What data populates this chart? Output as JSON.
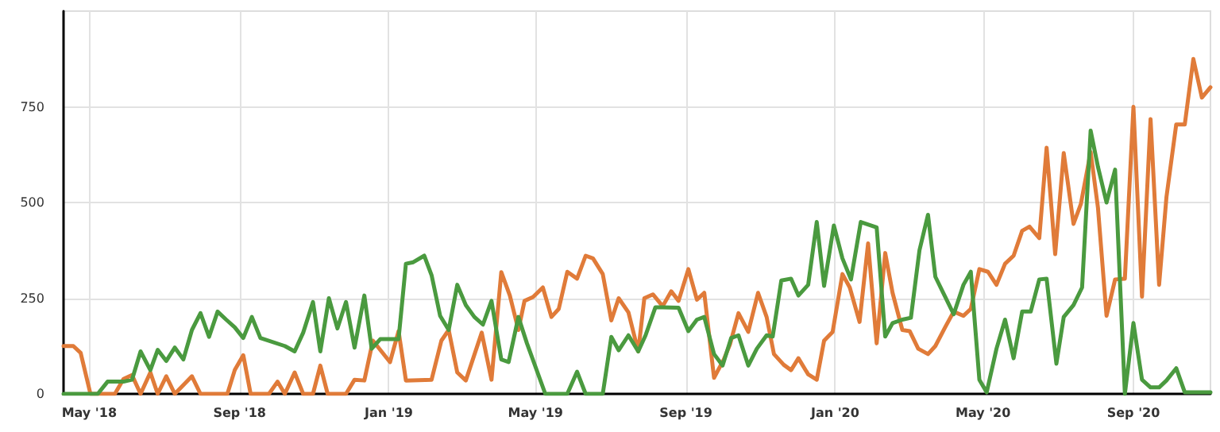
{
  "chart_data": {
    "type": "line",
    "xlim": [
      "2018-04-10",
      "2020-11-03"
    ],
    "ylim": [
      0,
      1000
    ],
    "xticks": [
      {
        "value": "2018-05-01",
        "label": "May '18"
      },
      {
        "value": "2018-09-01",
        "label": "Sep '18"
      },
      {
        "value": "2019-01-01",
        "label": "Jan '19"
      },
      {
        "value": "2019-05-01",
        "label": "May '19"
      },
      {
        "value": "2019-09-01",
        "label": "Sep '19"
      },
      {
        "value": "2020-01-01",
        "label": "Jan '20"
      },
      {
        "value": "2020-05-01",
        "label": "May '20"
      },
      {
        "value": "2020-09-01",
        "label": "Sep '20"
      }
    ],
    "yticks": [
      0,
      250,
      500,
      750
    ],
    "grid": true,
    "marker": "none",
    "line_style": "solid",
    "series": [
      {
        "color": "#e07b39",
        "x": [
          "2018-04-10",
          "2018-04-18",
          "2018-04-24",
          "2018-05-02",
          "2018-05-22",
          "2018-05-29",
          "2018-06-05",
          "2018-06-12",
          "2018-06-20",
          "2018-06-26",
          "2018-07-03",
          "2018-07-10",
          "2018-07-24",
          "2018-07-31",
          "2018-08-22",
          "2018-08-28",
          "2018-09-04",
          "2018-09-10",
          "2018-09-25",
          "2018-10-02",
          "2018-10-08",
          "2018-10-16",
          "2018-10-23",
          "2018-10-31",
          "2018-11-06",
          "2018-11-12",
          "2018-11-27",
          "2018-12-04",
          "2018-12-12",
          "2018-12-19",
          "2018-12-26",
          "2019-01-02",
          "2019-01-09",
          "2019-01-15",
          "2019-02-05",
          "2019-02-13",
          "2019-02-19",
          "2019-02-26",
          "2019-03-05",
          "2019-03-18",
          "2019-03-26",
          "2019-04-03",
          "2019-04-10",
          "2019-04-17",
          "2019-04-22",
          "2019-04-29",
          "2019-05-07",
          "2019-05-14",
          "2019-05-20",
          "2019-05-27",
          "2019-06-04",
          "2019-06-11",
          "2019-06-17",
          "2019-06-25",
          "2019-07-02",
          "2019-07-08",
          "2019-07-16",
          "2019-07-24",
          "2019-07-29",
          "2019-08-05",
          "2019-08-13",
          "2019-08-20",
          "2019-08-26",
          "2019-09-03",
          "2019-09-10",
          "2019-09-16",
          "2019-09-24",
          "2019-10-02",
          "2019-10-07",
          "2019-10-14",
          "2019-10-22",
          "2019-10-30",
          "2019-11-06",
          "2019-11-12",
          "2019-11-20",
          "2019-11-26",
          "2019-12-02",
          "2019-12-10",
          "2019-12-17",
          "2019-12-23",
          "2019-12-30",
          "2020-01-07",
          "2020-01-13",
          "2020-01-21",
          "2020-01-28",
          "2020-02-04",
          "2020-02-11",
          "2020-02-17",
          "2020-02-25",
          "2020-03-02",
          "2020-03-09",
          "2020-03-17",
          "2020-03-23",
          "2020-03-31",
          "2020-04-07",
          "2020-04-15",
          "2020-04-21",
          "2020-04-28",
          "2020-05-05",
          "2020-05-12",
          "2020-05-19",
          "2020-05-26",
          "2020-06-02",
          "2020-06-08",
          "2020-06-16",
          "2020-06-22",
          "2020-06-29",
          "2020-07-06",
          "2020-07-14",
          "2020-07-20",
          "2020-07-28",
          "2020-08-03",
          "2020-08-10",
          "2020-08-17",
          "2020-08-25",
          "2020-09-01",
          "2020-09-08",
          "2020-09-15",
          "2020-09-22",
          "2020-09-28",
          "2020-10-06",
          "2020-10-13",
          "2020-10-20",
          "2020-10-27",
          "2020-11-03"
        ],
        "values": [
          125,
          125,
          107,
          0,
          0,
          39,
          49,
          0,
          56,
          0,
          46,
          0,
          46,
          0,
          0,
          62,
          101,
          0,
          0,
          32,
          0,
          56,
          0,
          0,
          74,
          0,
          0,
          37,
          35,
          139,
          111,
          83,
          164,
          35,
          37,
          139,
          167,
          56,
          35,
          160,
          37,
          318,
          257,
          167,
          243,
          253,
          278,
          201,
          222,
          319,
          301,
          361,
          354,
          313,
          192,
          250,
          213,
          111,
          250,
          260,
          229,
          268,
          243,
          326,
          246,
          264,
          42,
          90,
          129,
          211,
          162,
          264,
          201,
          104,
          76,
          62,
          93,
          51,
          37,
          139,
          162,
          313,
          278,
          188,
          393,
          132,
          368,
          264,
          167,
          164,
          118,
          104,
          125,
          174,
          215,
          204,
          222,
          326,
          319,
          285,
          340,
          361,
          426,
          437,
          407,
          643,
          365,
          629,
          444,
          496,
          632,
          486,
          204,
          299,
          301,
          750,
          254,
          718,
          285,
          514,
          704,
          704,
          875,
          774,
          801
        ]
      },
      {
        "color": "#4a9a3f",
        "x": [
          "2018-04-10",
          "2018-05-08",
          "2018-05-16",
          "2018-05-29",
          "2018-06-05",
          "2018-06-12",
          "2018-06-20",
          "2018-06-26",
          "2018-07-03",
          "2018-07-10",
          "2018-07-17",
          "2018-07-24",
          "2018-07-31",
          "2018-08-07",
          "2018-08-14",
          "2018-08-21",
          "2018-08-28",
          "2018-09-04",
          "2018-09-11",
          "2018-09-18",
          "2018-10-08",
          "2018-10-16",
          "2018-10-23",
          "2018-10-31",
          "2018-11-06",
          "2018-11-13",
          "2018-11-20",
          "2018-11-27",
          "2018-12-04",
          "2018-12-12",
          "2018-12-18",
          "2018-12-25",
          "2019-01-09",
          "2019-01-15",
          "2019-01-21",
          "2019-01-30",
          "2019-02-05",
          "2019-02-12",
          "2019-02-19",
          "2019-02-26",
          "2019-03-05",
          "2019-03-12",
          "2019-03-19",
          "2019-03-26",
          "2019-04-03",
          "2019-04-09",
          "2019-04-17",
          "2019-04-24",
          "2019-05-09",
          "2019-05-27",
          "2019-06-04",
          "2019-06-11",
          "2019-06-25",
          "2019-07-02",
          "2019-07-08",
          "2019-07-16",
          "2019-07-24",
          "2019-07-30",
          "2019-08-07",
          "2019-08-13",
          "2019-08-26",
          "2019-09-03",
          "2019-09-10",
          "2019-09-16",
          "2019-09-24",
          "2019-10-01",
          "2019-10-08",
          "2019-10-14",
          "2019-10-22",
          "2019-10-29",
          "2019-11-06",
          "2019-11-11",
          "2019-11-18",
          "2019-11-26",
          "2019-12-02",
          "2019-12-10",
          "2019-12-17",
          "2019-12-23",
          "2019-12-31",
          "2020-01-07",
          "2020-01-14",
          "2020-01-22",
          "2020-02-04",
          "2020-02-11",
          "2020-02-17",
          "2020-02-25",
          "2020-03-03",
          "2020-03-10",
          "2020-03-17",
          "2020-03-23",
          "2020-03-31",
          "2020-04-07",
          "2020-04-15",
          "2020-04-21",
          "2020-04-28",
          "2020-05-04",
          "2020-05-12",
          "2020-05-19",
          "2020-05-26",
          "2020-06-02",
          "2020-06-09",
          "2020-06-16",
          "2020-06-22",
          "2020-06-30",
          "2020-07-06",
          "2020-07-14",
          "2020-07-21",
          "2020-07-28",
          "2020-08-03",
          "2020-08-10",
          "2020-08-17",
          "2020-08-25",
          "2020-09-01",
          "2020-09-08",
          "2020-09-15",
          "2020-09-22",
          "2020-09-28",
          "2020-10-06",
          "2020-10-13",
          "2020-11-03"
        ],
        "values": [
          0,
          0,
          32,
          32,
          37,
          111,
          62,
          115,
          86,
          121,
          90,
          167,
          211,
          149,
          215,
          194,
          174,
          146,
          201,
          146,
          125,
          111,
          160,
          240,
          111,
          250,
          171,
          240,
          121,
          257,
          118,
          143,
          143,
          340,
          344,
          361,
          310,
          204,
          167,
          285,
          232,
          201,
          181,
          243,
          90,
          83,
          201,
          132,
          0,
          0,
          58,
          0,
          0,
          149,
          114,
          153,
          111,
          153,
          226,
          226,
          225,
          164,
          194,
          201,
          104,
          74,
          146,
          153,
          74,
          118,
          153,
          150,
          296,
          301,
          257,
          285,
          449,
          282,
          440,
          354,
          299,
          449,
          435,
          150,
          185,
          194,
          199,
          375,
          468,
          306,
          254,
          208,
          285,
          319,
          37,
          4,
          118,
          194,
          93,
          215,
          215,
          299,
          301,
          79,
          201,
          232,
          278,
          688,
          593,
          500,
          586,
          0,
          185,
          37,
          17,
          17,
          35,
          67,
          4,
          4
        ]
      }
    ]
  }
}
